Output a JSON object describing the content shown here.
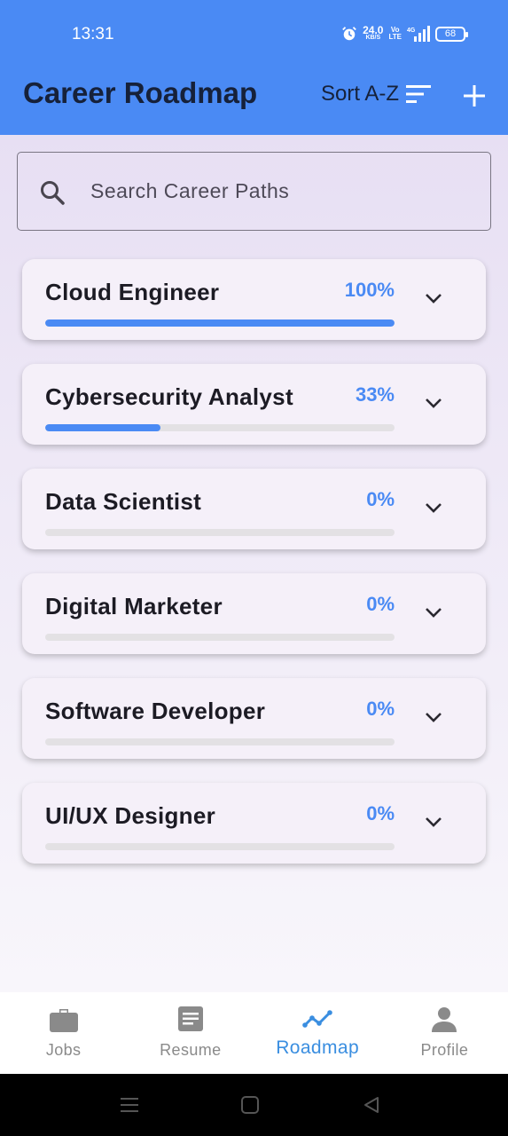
{
  "status_bar": {
    "time": "13:31",
    "speed_value": "24.0",
    "speed_unit": "KB/S",
    "volte": "Vo\nLTE",
    "network": "4G",
    "battery": "68"
  },
  "header": {
    "title": "Career Roadmap",
    "sort_label": "Sort A-Z",
    "sort_icon": "sort-icon",
    "add_icon": "plus-icon"
  },
  "search": {
    "placeholder": "Search Career Paths",
    "value": "",
    "icon": "search-icon"
  },
  "paths": [
    {
      "title": "Cloud Engineer",
      "percent_label": "100%",
      "progress": 1.0
    },
    {
      "title": "Cybersecurity Analyst",
      "percent_label": "33%",
      "progress": 0.33
    },
    {
      "title": "Data Scientist",
      "percent_label": "0%",
      "progress": 0
    },
    {
      "title": "Digital Marketer",
      "percent_label": "0%",
      "progress": 0
    },
    {
      "title": "Software Developer",
      "percent_label": "0%",
      "progress": 0
    },
    {
      "title": "UI/UX Designer",
      "percent_label": "0%",
      "progress": 0
    }
  ],
  "bottom_nav": {
    "items": [
      {
        "label": "Jobs",
        "icon": "briefcase-icon"
      },
      {
        "label": "Resume",
        "icon": "document-icon"
      },
      {
        "label": "Roadmap",
        "icon": "roadmap-icon",
        "active": true
      },
      {
        "label": "Profile",
        "icon": "person-icon"
      }
    ]
  },
  "colors": {
    "accent": "#4a8af4",
    "nav_active": "#3a8ee0",
    "nav_inactive": "#8a8a8a"
  }
}
